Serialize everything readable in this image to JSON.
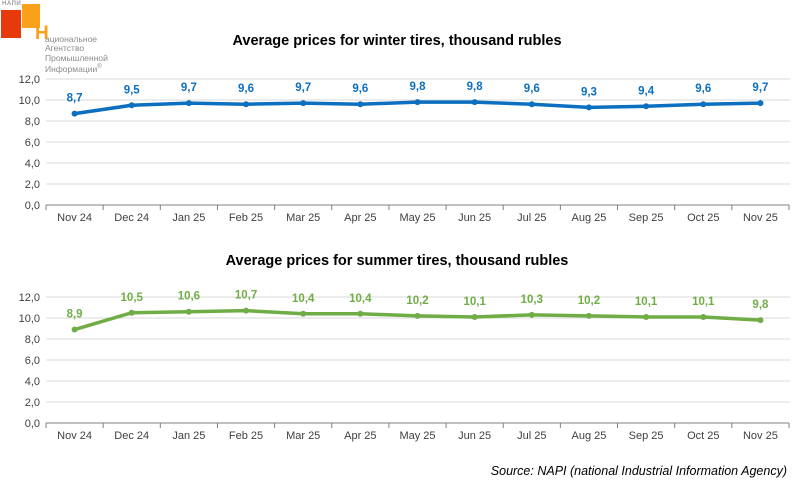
{
  "logo": {
    "mini_label": "НАПИ",
    "initial": "Н",
    "line1_rest": "ациональное",
    "line2": "Агентство",
    "line3": "Промышленной",
    "line4": "Информации",
    "reg_mark": "®",
    "red": "#e8390c",
    "orange": "#f9a11b",
    "text_gray": "#898c8e"
  },
  "source_note": "Source: NAPI (national Industrial Information Agency)",
  "colors": {
    "winter_line": "#0c6fbf",
    "summer_line": "#70ad47",
    "gridline": "#d9d9d9",
    "axis": "#808080",
    "tick_label": "#404040"
  },
  "chart_data": [
    {
      "type": "line",
      "title": "Average prices for winter tires, thousand rubles",
      "categories": [
        "Nov 24",
        "Dec 24",
        "Jan 25",
        "Feb 25",
        "Mar 25",
        "Apr 25",
        "May 25",
        "Jun 25",
        "Jul 25",
        "Aug 25",
        "Sep 25",
        "Oct 25",
        "Nov 25"
      ],
      "series": [
        {
          "name": "winter-tires",
          "color": "#0c6fbf",
          "values": [
            8.7,
            9.5,
            9.7,
            9.6,
            9.7,
            9.6,
            9.8,
            9.8,
            9.6,
            9.3,
            9.4,
            9.6,
            9.7
          ],
          "point_labels": [
            "8,7",
            "9,5",
            "9,7",
            "9,6",
            "9,7",
            "9,6",
            "9,8",
            "9,8",
            "9,6",
            "9,3",
            "9,4",
            "9,6",
            "9,7"
          ]
        }
      ],
      "ylim": [
        0,
        12
      ],
      "ytick_step": 2,
      "yticks": [
        "0,0",
        "2,0",
        "4,0",
        "6,0",
        "8,0",
        "10,0",
        "12,0"
      ],
      "grid": true,
      "legend": "none",
      "xlabel": "",
      "ylabel": ""
    },
    {
      "type": "line",
      "title": "Average prices for summer tires, thousand rubles",
      "categories": [
        "Nov 24",
        "Dec 24",
        "Jan 25",
        "Feb 25",
        "Mar 25",
        "Apr 25",
        "May 25",
        "Jun 25",
        "Jul 25",
        "Aug 25",
        "Sep 25",
        "Oct 25",
        "Nov 25"
      ],
      "series": [
        {
          "name": "summer-tires",
          "color": "#70ad47",
          "values": [
            8.9,
            10.5,
            10.6,
            10.7,
            10.4,
            10.4,
            10.2,
            10.1,
            10.3,
            10.2,
            10.1,
            10.1,
            9.8
          ],
          "point_labels": [
            "8,9",
            "10,5",
            "10,6",
            "10,7",
            "10,4",
            "10,4",
            "10,2",
            "10,1",
            "10,3",
            "10,2",
            "10,1",
            "10,1",
            "9,8"
          ]
        }
      ],
      "ylim": [
        0,
        12
      ],
      "ytick_step": 2,
      "yticks": [
        "0,0",
        "2,0",
        "4,0",
        "6,0",
        "8,0",
        "10,0",
        "12,0"
      ],
      "grid": true,
      "legend": "none",
      "xlabel": "",
      "ylabel": ""
    }
  ]
}
